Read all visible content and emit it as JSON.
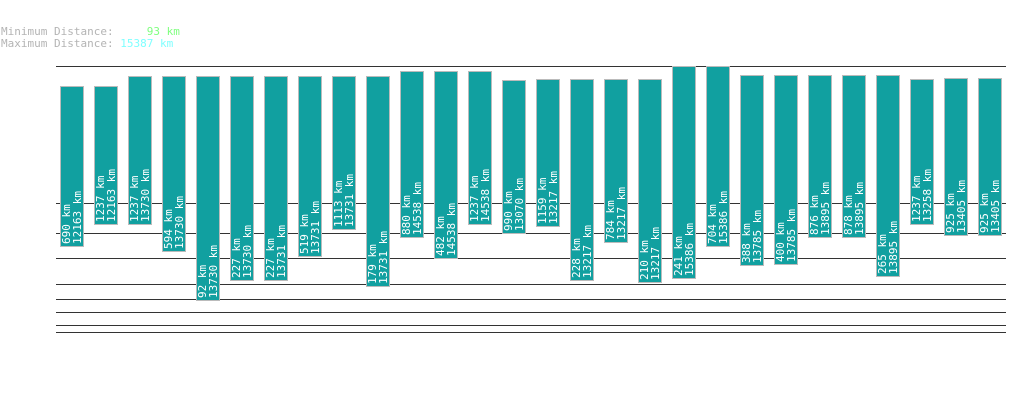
{
  "header": {
    "min_label": "Minimum Distance:",
    "min_value": "93 km",
    "max_label": "Maximum Distance:",
    "max_value": "15387 km"
  },
  "chart_data": {
    "type": "bar",
    "unit": "km",
    "colors": {
      "bar": "#11a0a0",
      "min": "#7fff7f",
      "max": "#7fffff"
    },
    "bars": [
      {
        "min": "690 km",
        "max": "12163 km"
      },
      {
        "min": "1237 km",
        "max": "12163 km"
      },
      {
        "min": "1237 km",
        "max": "13730 km"
      },
      {
        "min": "594 km",
        "max": "13730 km"
      },
      {
        "min": "92 km",
        "max": "13730 km"
      },
      {
        "min": "227 km",
        "max": "13730 km"
      },
      {
        "min": "227 km",
        "max": "13731 km"
      },
      {
        "min": "519 km",
        "max": "13731 km"
      },
      {
        "min": "1113 km",
        "max": "13731 km"
      },
      {
        "min": "179 km",
        "max": "13731 km"
      },
      {
        "min": "880 km",
        "max": "14538 km"
      },
      {
        "min": "482 km",
        "max": "14538 km"
      },
      {
        "min": "1237 km",
        "max": "14538 km"
      },
      {
        "min": "990 km",
        "max": "13070 km"
      },
      {
        "min": "1159 km",
        "max": "13217 km"
      },
      {
        "min": "228 km",
        "max": "13217 km"
      },
      {
        "min": "784 km",
        "max": "13217 km"
      },
      {
        "min": "210 km",
        "max": "13217 km"
      },
      {
        "min": "241 km",
        "max": "15386 km"
      },
      {
        "min": "704 km",
        "max": "15386 km"
      },
      {
        "min": "388 km",
        "max": "13785 km"
      },
      {
        "min": "400 km",
        "max": "13785 km"
      },
      {
        "min": "876 km",
        "max": "13895 km"
      },
      {
        "min": "878 km",
        "max": "13895 km"
      },
      {
        "min": "265 km",
        "max": "13895 km"
      },
      {
        "min": "1237 km",
        "max": "13258 km"
      },
      {
        "min": "925 km",
        "max": "13405 km"
      },
      {
        "min": "925 km",
        "max": "13405 km"
      }
    ]
  }
}
